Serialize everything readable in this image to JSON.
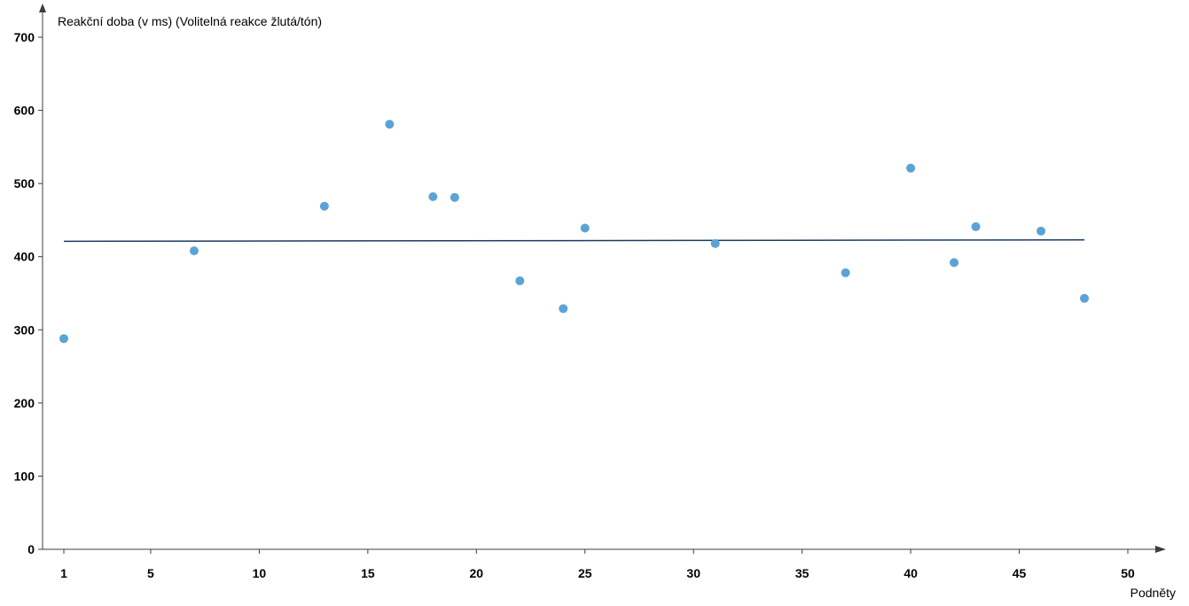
{
  "chart_data": {
    "type": "scatter",
    "ylabel": "Reakční doba (v ms) (Volitelná reakce žlutá/tón)",
    "xlabel": "Podněty",
    "x_ticks": [
      1,
      5,
      10,
      15,
      20,
      25,
      30,
      35,
      40,
      45,
      50
    ],
    "y_ticks": [
      0,
      100,
      200,
      300,
      400,
      500,
      600,
      700
    ],
    "xlim": [
      1,
      50
    ],
    "ylim": [
      0,
      700
    ],
    "grid": false,
    "points": [
      {
        "x": 1,
        "y": 288
      },
      {
        "x": 7,
        "y": 408
      },
      {
        "x": 13,
        "y": 469
      },
      {
        "x": 16,
        "y": 581
      },
      {
        "x": 18,
        "y": 482
      },
      {
        "x": 19,
        "y": 481
      },
      {
        "x": 22,
        "y": 367
      },
      {
        "x": 24,
        "y": 329
      },
      {
        "x": 25,
        "y": 439
      },
      {
        "x": 31,
        "y": 418
      },
      {
        "x": 37,
        "y": 378
      },
      {
        "x": 40,
        "y": 521
      },
      {
        "x": 42,
        "y": 392
      },
      {
        "x": 43,
        "y": 441
      },
      {
        "x": 46,
        "y": 435
      },
      {
        "x": 48,
        "y": 343
      }
    ],
    "trendline": {
      "x": [
        1,
        48
      ],
      "y": [
        421,
        423
      ]
    },
    "colors": {
      "points": "#5ba3d6",
      "trendline": "#1f3a5f",
      "axis": "#3c3c3c"
    }
  }
}
